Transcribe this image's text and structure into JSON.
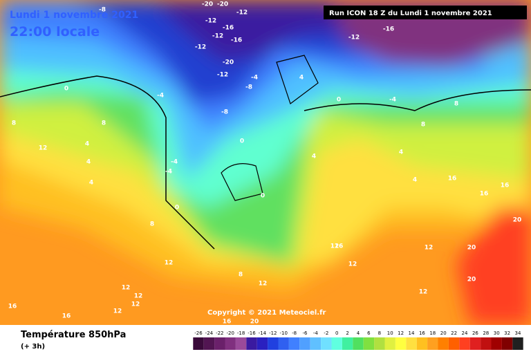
{
  "header": {
    "date": "Lundi 1 novembre 2021",
    "time": "22:00 locale",
    "run": "Run ICON 18 Z du Lundi 1 novembre 2021"
  },
  "copyright": "Copyright © 2021 Meteociel.fr",
  "footer": {
    "title": "Température 850hPa",
    "step": "(+ 3h)"
  },
  "scale": {
    "values": [
      -26,
      -24,
      -22,
      -20,
      -18,
      -16,
      -14,
      -12,
      -10,
      -8,
      -6,
      -4,
      -2,
      0,
      2,
      4,
      6,
      8,
      10,
      12,
      14,
      16,
      18,
      20,
      22,
      24,
      26,
      28,
      30,
      32,
      34
    ],
    "colors": [
      "#3a0a3a",
      "#521552",
      "#6a206a",
      "#80307f",
      "#9a4a9a",
      "#3a1aa0",
      "#2a20c0",
      "#2040e0",
      "#3060f0",
      "#4080ff",
      "#50a0ff",
      "#60c0ff",
      "#70e0ff",
      "#60ffe0",
      "#40f0a0",
      "#50e060",
      "#80e040",
      "#b0e040",
      "#e0f040",
      "#ffff40",
      "#ffe040",
      "#ffc020",
      "#ffa020",
      "#ff8000",
      "#ff6000",
      "#ff4020",
      "#e02020",
      "#c01010",
      "#a00000",
      "#800000",
      "#202020"
    ]
  },
  "contour_labels": [
    -8,
    -20,
    -20,
    -12,
    -12,
    -12,
    -16,
    -12,
    -16,
    -12,
    -12,
    -16,
    -20,
    -4,
    -4,
    -8,
    -8,
    -4,
    -4,
    -4,
    0,
    0,
    0,
    0,
    0,
    4,
    4,
    4,
    4,
    4,
    4,
    8,
    8,
    8,
    8,
    8,
    8,
    12,
    12,
    12,
    12,
    12,
    12,
    12,
    12,
    16,
    16,
    16,
    16,
    16,
    20,
    20,
    20,
    20,
    12,
    12,
    16,
    16,
    12,
    4
  ]
}
